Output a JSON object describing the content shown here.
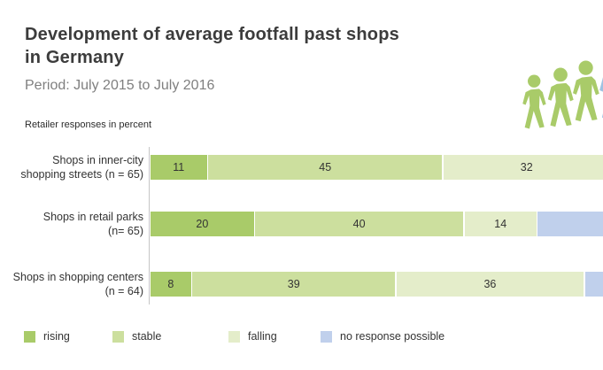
{
  "header": {
    "title_line1": "Development of average footfall past shops",
    "title_line2": "in Germany",
    "subtitle": "Period: July 2015 to July 2016",
    "note": "Retailer responses in percent"
  },
  "colors": {
    "rising": "#a9cb69",
    "stable": "#ccdf9e",
    "falling": "#e4edca",
    "no_response": "#c0d0ec",
    "axis_line": "#c6c6c6",
    "title_text": "#3c3c3c",
    "subtitle_text": "#7f7f7f",
    "icon_green": "#a9cb69",
    "icon_blue": "#9fc2e2"
  },
  "chart_data": {
    "type": "bar",
    "orientation": "horizontal",
    "stacked": true,
    "unit": "percent",
    "title": "Development of average footfall past shops in Germany",
    "subtitle": "Period: July 2015 to July 2016",
    "axis_note": "Retailer responses in percent",
    "xlim": [
      0,
      100
    ],
    "grid": false,
    "legend_position": "bottom",
    "cropped_right_edge": true,
    "categories": [
      "Shops in inner-city shopping streets (n = 65)",
      "Shops in retail parks (n= 65)",
      "Shops in shopping centers (n = 64)"
    ],
    "category_lines": [
      [
        "Shops in inner-city",
        "shopping streets (n = 65)"
      ],
      [
        "Shops in retail parks",
        "(n= 65)"
      ],
      [
        "Shops in shopping centers",
        "(n = 64)"
      ]
    ],
    "series": [
      {
        "name": "rising",
        "color": "#a9cb69",
        "values": [
          11,
          20,
          8
        ]
      },
      {
        "name": "stable",
        "color": "#ccdf9e",
        "values": [
          45,
          40,
          39
        ]
      },
      {
        "name": "falling",
        "color": "#e4edca",
        "values": [
          32,
          14,
          36
        ]
      },
      {
        "name": "no response possible",
        "color": "#c0d0ec",
        "values": [
          null,
          null,
          null
        ],
        "fills_remainder": true
      }
    ]
  },
  "legend": {
    "items": [
      {
        "label": "rising",
        "color": "#a9cb69"
      },
      {
        "label": "stable",
        "color": "#ccdf9e"
      },
      {
        "label": "falling",
        "color": "#e4edca"
      },
      {
        "label": "no response possible",
        "color": "#c0d0ec"
      }
    ]
  }
}
